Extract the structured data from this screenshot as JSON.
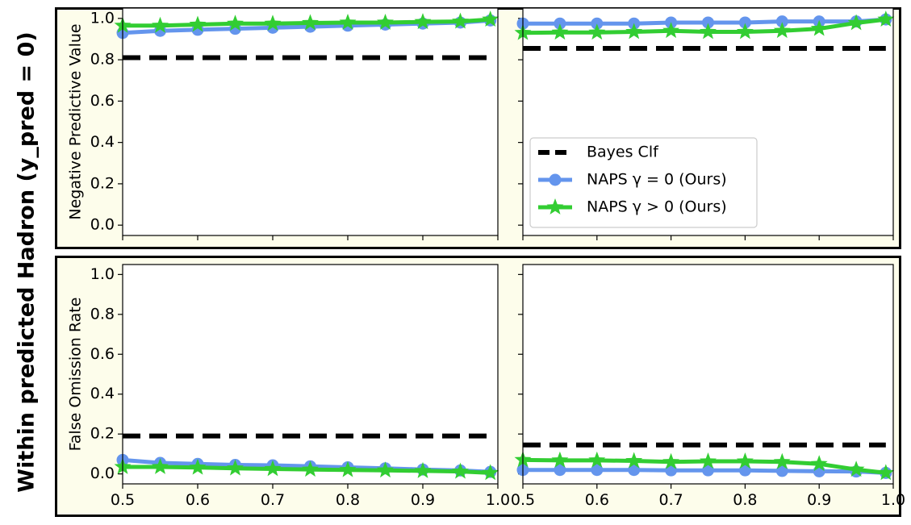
{
  "figure": {
    "super_ylabel": "Within predicted Hadron (y_pred = 0)"
  },
  "legend": {
    "placement": "lower-right of top-right panel",
    "entries": [
      {
        "label": "Bayes Clf",
        "series": "bayes"
      },
      {
        "label": "NAPS γ = 0 (Ours)",
        "series": "naps0"
      },
      {
        "label": "NAPS γ > 0 (Ours)",
        "series": "naps1"
      }
    ]
  },
  "colors": {
    "bayes": "#000000",
    "naps0": "#6495ed",
    "naps1": "#32cd32",
    "frame_background": "#fdfdeb",
    "axes_background": "#ffffff"
  },
  "chart_data": [
    {
      "id": "npv-left",
      "type": "line",
      "ylabel": "Negative Predictive Value",
      "xlim": [
        0.5,
        1.0
      ],
      "ylim": [
        -0.05,
        1.05
      ],
      "xticks": [
        "0.5",
        "0.6",
        "0.7",
        "0.8",
        "0.9",
        "1.0"
      ],
      "yticks": [
        "0.0",
        "0.2",
        "0.4",
        "0.6",
        "0.8",
        "1.0"
      ],
      "x_tick_labels_shown": false,
      "y_tick_labels_shown": true,
      "grid": false,
      "x": [
        0.5,
        0.55,
        0.6,
        0.65,
        0.7,
        0.75,
        0.8,
        0.85,
        0.9,
        0.95,
        0.99
      ],
      "series": [
        {
          "key": "bayes",
          "style": "dashed",
          "x": [
            0.5,
            0.99
          ],
          "values": [
            0.81,
            0.81
          ]
        },
        {
          "key": "naps0",
          "style": "line-circle",
          "values": [
            0.93,
            0.94,
            0.945,
            0.95,
            0.955,
            0.96,
            0.965,
            0.97,
            0.975,
            0.98,
            0.99
          ]
        },
        {
          "key": "naps1",
          "style": "line-star",
          "values": [
            0.965,
            0.965,
            0.97,
            0.975,
            0.975,
            0.978,
            0.98,
            0.98,
            0.983,
            0.985,
            0.995
          ]
        }
      ]
    },
    {
      "id": "npv-right",
      "type": "line",
      "ylabel": "",
      "xlim": [
        0.5,
        1.0
      ],
      "ylim": [
        -0.05,
        1.05
      ],
      "xticks": [
        "0.5",
        "0.6",
        "0.7",
        "0.8",
        "0.9",
        "1.0"
      ],
      "yticks": [
        "0.0",
        "0.2",
        "0.4",
        "0.6",
        "0.8",
        "1.0"
      ],
      "x_tick_labels_shown": false,
      "y_tick_labels_shown": false,
      "grid": false,
      "x": [
        0.5,
        0.55,
        0.6,
        0.65,
        0.7,
        0.75,
        0.8,
        0.85,
        0.9,
        0.95,
        0.99
      ],
      "series": [
        {
          "key": "bayes",
          "style": "dashed",
          "x": [
            0.5,
            0.99
          ],
          "values": [
            0.855,
            0.855
          ]
        },
        {
          "key": "naps0",
          "style": "line-circle",
          "values": [
            0.975,
            0.975,
            0.975,
            0.975,
            0.98,
            0.98,
            0.98,
            0.985,
            0.985,
            0.985,
            0.995
          ]
        },
        {
          "key": "naps1",
          "style": "line-star",
          "values": [
            0.93,
            0.932,
            0.932,
            0.935,
            0.94,
            0.935,
            0.935,
            0.94,
            0.95,
            0.978,
            0.995
          ]
        }
      ]
    },
    {
      "id": "for-left",
      "type": "line",
      "ylabel": "False Omission Rate",
      "xlim": [
        0.5,
        1.0
      ],
      "ylim": [
        -0.05,
        1.05
      ],
      "xticks": [
        "0.5",
        "0.6",
        "0.7",
        "0.8",
        "0.9",
        "1.0"
      ],
      "yticks": [
        "0.0",
        "0.2",
        "0.4",
        "0.6",
        "0.8",
        "1.0"
      ],
      "x_tick_labels_shown": true,
      "y_tick_labels_shown": true,
      "grid": false,
      "x": [
        0.5,
        0.55,
        0.6,
        0.65,
        0.7,
        0.75,
        0.8,
        0.85,
        0.9,
        0.95,
        0.99
      ],
      "series": [
        {
          "key": "bayes",
          "style": "dashed",
          "x": [
            0.5,
            0.99
          ],
          "values": [
            0.19,
            0.19
          ]
        },
        {
          "key": "naps0",
          "style": "line-circle",
          "values": [
            0.07,
            0.055,
            0.05,
            0.045,
            0.043,
            0.038,
            0.033,
            0.028,
            0.022,
            0.017,
            0.01
          ]
        },
        {
          "key": "naps1",
          "style": "line-star",
          "values": [
            0.035,
            0.035,
            0.032,
            0.028,
            0.025,
            0.022,
            0.02,
            0.018,
            0.015,
            0.012,
            0.005
          ]
        }
      ]
    },
    {
      "id": "for-right",
      "type": "line",
      "ylabel": "",
      "xlim": [
        0.5,
        1.0
      ],
      "ylim": [
        -0.05,
        1.05
      ],
      "xticks": [
        "0.5",
        "0.6",
        "0.7",
        "0.8",
        "0.9",
        "1.0"
      ],
      "yticks": [
        "0.0",
        "0.2",
        "0.4",
        "0.6",
        "0.8",
        "1.0"
      ],
      "x_tick_labels_shown": true,
      "y_tick_labels_shown": false,
      "grid": false,
      "x": [
        0.5,
        0.55,
        0.6,
        0.65,
        0.7,
        0.75,
        0.8,
        0.85,
        0.9,
        0.95,
        0.99
      ],
      "series": [
        {
          "key": "bayes",
          "style": "dashed",
          "x": [
            0.5,
            0.99
          ],
          "values": [
            0.145,
            0.145
          ]
        },
        {
          "key": "naps0",
          "style": "line-circle",
          "values": [
            0.02,
            0.02,
            0.02,
            0.02,
            0.018,
            0.018,
            0.018,
            0.015,
            0.013,
            0.012,
            0.005
          ]
        },
        {
          "key": "naps1",
          "style": "line-star",
          "values": [
            0.07,
            0.068,
            0.068,
            0.065,
            0.06,
            0.063,
            0.063,
            0.06,
            0.05,
            0.022,
            0.005
          ]
        }
      ]
    }
  ]
}
